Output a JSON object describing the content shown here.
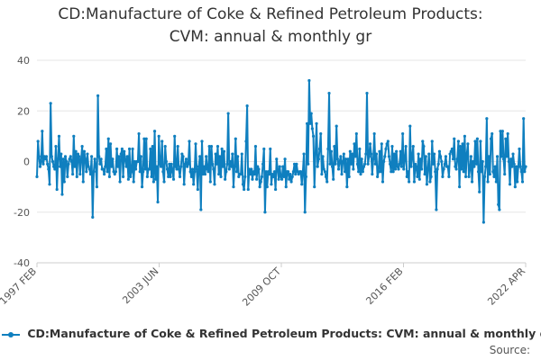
{
  "chart_data": {
    "type": "line",
    "title": [
      "CD:Manufacture of Coke & Refined Petroleum Products:",
      "CVM: annual & monthly gr"
    ],
    "ylim": [
      -40,
      40
    ],
    "yticks": [
      40,
      20,
      0,
      -20,
      -40
    ],
    "xticks": [
      "1997 FEB",
      "2003 JUN",
      "2009 OCT",
      "2016 FEB",
      "2022 APR"
    ],
    "series": [
      {
        "name": "CD:Manufacture of Coke & Refined Petroleum Products: CVM: annual & monthly gr",
        "color": "#0f7fbf",
        "values": [
          -6,
          8,
          2,
          -2,
          0,
          12,
          -1,
          2,
          1,
          2,
          -1,
          -3,
          -9,
          23,
          2,
          0,
          -2,
          -3,
          6,
          -11,
          1,
          10,
          -2,
          3,
          -13,
          1,
          -8,
          2,
          0,
          -6,
          -1,
          1,
          2,
          0,
          -5,
          10,
          -2,
          4,
          -6,
          3,
          2,
          -5,
          1,
          6,
          -8,
          4,
          1,
          -4,
          3,
          -2,
          -3,
          -5,
          2,
          -22,
          -4,
          1,
          -2,
          -10,
          26,
          2,
          -1,
          1,
          -3,
          -3,
          -5,
          -2,
          5,
          -4,
          9,
          -6,
          7,
          -2,
          1,
          -4,
          -5,
          -4,
          5,
          -2,
          2,
          -8,
          3,
          5,
          -6,
          4,
          1,
          -2,
          2,
          -7,
          5,
          -6,
          -4,
          5,
          -8,
          0,
          -3,
          0,
          0,
          11,
          -4,
          2,
          -10,
          -4,
          9,
          -3,
          9,
          -6,
          -3,
          -3,
          5,
          -6,
          6,
          -8,
          12,
          -7,
          -2,
          -16,
          10,
          -1,
          -2,
          8,
          -4,
          -8,
          6,
          0,
          -3,
          -6,
          -1,
          -6,
          -1,
          -4,
          -7,
          10,
          -2,
          -3,
          6,
          -3,
          -6,
          -2,
          3,
          2,
          -9,
          -1,
          1,
          -2,
          -1,
          8,
          -4,
          -6,
          -3,
          -9,
          -4,
          7,
          -3,
          -11,
          -2,
          2,
          -19,
          8,
          -5,
          -2,
          -5,
          2,
          -3,
          -4,
          6,
          -8,
          6,
          -1,
          -3,
          -9,
          3,
          -1,
          6,
          -5,
          2,
          -6,
          5,
          -2,
          4,
          -7,
          -4,
          -1,
          19,
          -3,
          0,
          -2,
          3,
          -10,
          -2,
          9,
          -4,
          2,
          -6,
          -5,
          -5,
          3,
          -9,
          -11,
          -6,
          8,
          22,
          -11,
          -3,
          -5,
          -3,
          -7,
          -4,
          -5,
          6,
          -7,
          -2,
          -3,
          -10,
          -8,
          -6,
          -1,
          5,
          -20,
          -4,
          -10,
          -4,
          -5,
          5,
          -9,
          -5,
          -6,
          -4,
          -11,
          1,
          -3,
          -7,
          -2,
          -6,
          -7,
          -2,
          -6,
          1,
          -10,
          -4,
          -4,
          -7,
          -5,
          -8,
          -6,
          -4,
          -1,
          -5,
          -1,
          -4,
          -5,
          -4,
          -4,
          -9,
          -4,
          3,
          -20,
          -6,
          15,
          -1,
          32,
          15,
          19,
          13,
          10,
          -10,
          3,
          15,
          -2,
          1,
          5,
          11,
          -5,
          2,
          -3,
          -4,
          -6,
          -8,
          5,
          27,
          -1,
          4,
          -2,
          -7,
          6,
          -1,
          14,
          1,
          -3,
          0,
          2,
          -5,
          0,
          3,
          -4,
          1,
          -10,
          1,
          -6,
          4,
          -1,
          3,
          -3,
          7,
          2,
          11,
          -1,
          -4,
          5,
          -5,
          1,
          -4,
          -2,
          -1,
          3,
          27,
          -1,
          2,
          7,
          3,
          -5,
          1,
          11,
          -1,
          3,
          -6,
          -4,
          4,
          -4,
          7,
          -8,
          0,
          2,
          5,
          7,
          8,
          2,
          -1,
          -4,
          6,
          -4,
          3,
          -3,
          4,
          -2,
          -3,
          -1,
          4,
          -2,
          11,
          -3,
          1,
          6,
          -6,
          -4,
          -8,
          14,
          -2,
          2,
          6,
          -8,
          -1,
          -2,
          -6,
          3,
          -7,
          1,
          -3,
          8,
          6,
          -5,
          2,
          -9,
          -3,
          3,
          -8,
          -6,
          8,
          -1,
          3,
          -4,
          -19,
          -3,
          -1,
          4,
          2,
          0,
          -6,
          -3,
          -1,
          2,
          -2,
          -2,
          -6,
          3,
          4,
          5,
          1,
          9,
          -2,
          -3,
          1,
          8,
          -10,
          6,
          -3,
          7,
          -4,
          10,
          -6,
          3,
          7,
          -6,
          -3,
          2,
          -8,
          0,
          -2,
          8,
          -1,
          9,
          -4,
          -12,
          8,
          -4,
          0,
          -24,
          -6,
          -2,
          17,
          -8,
          2,
          -5,
          9,
          11,
          -4,
          -6,
          -2,
          -8,
          2,
          -17,
          -19,
          12,
          2,
          12,
          1,
          -5,
          9,
          2,
          11,
          0,
          -9,
          1,
          -2,
          3,
          -1,
          -10,
          -2,
          -8,
          -2,
          5,
          -2,
          -4,
          -8,
          17,
          -4,
          -2
        ]
      }
    ]
  },
  "legend": {
    "label": "CD:Manufacture of Coke & Refined Petroleum Products: CVM: annual & monthly gr"
  },
  "source_label": "Source:"
}
